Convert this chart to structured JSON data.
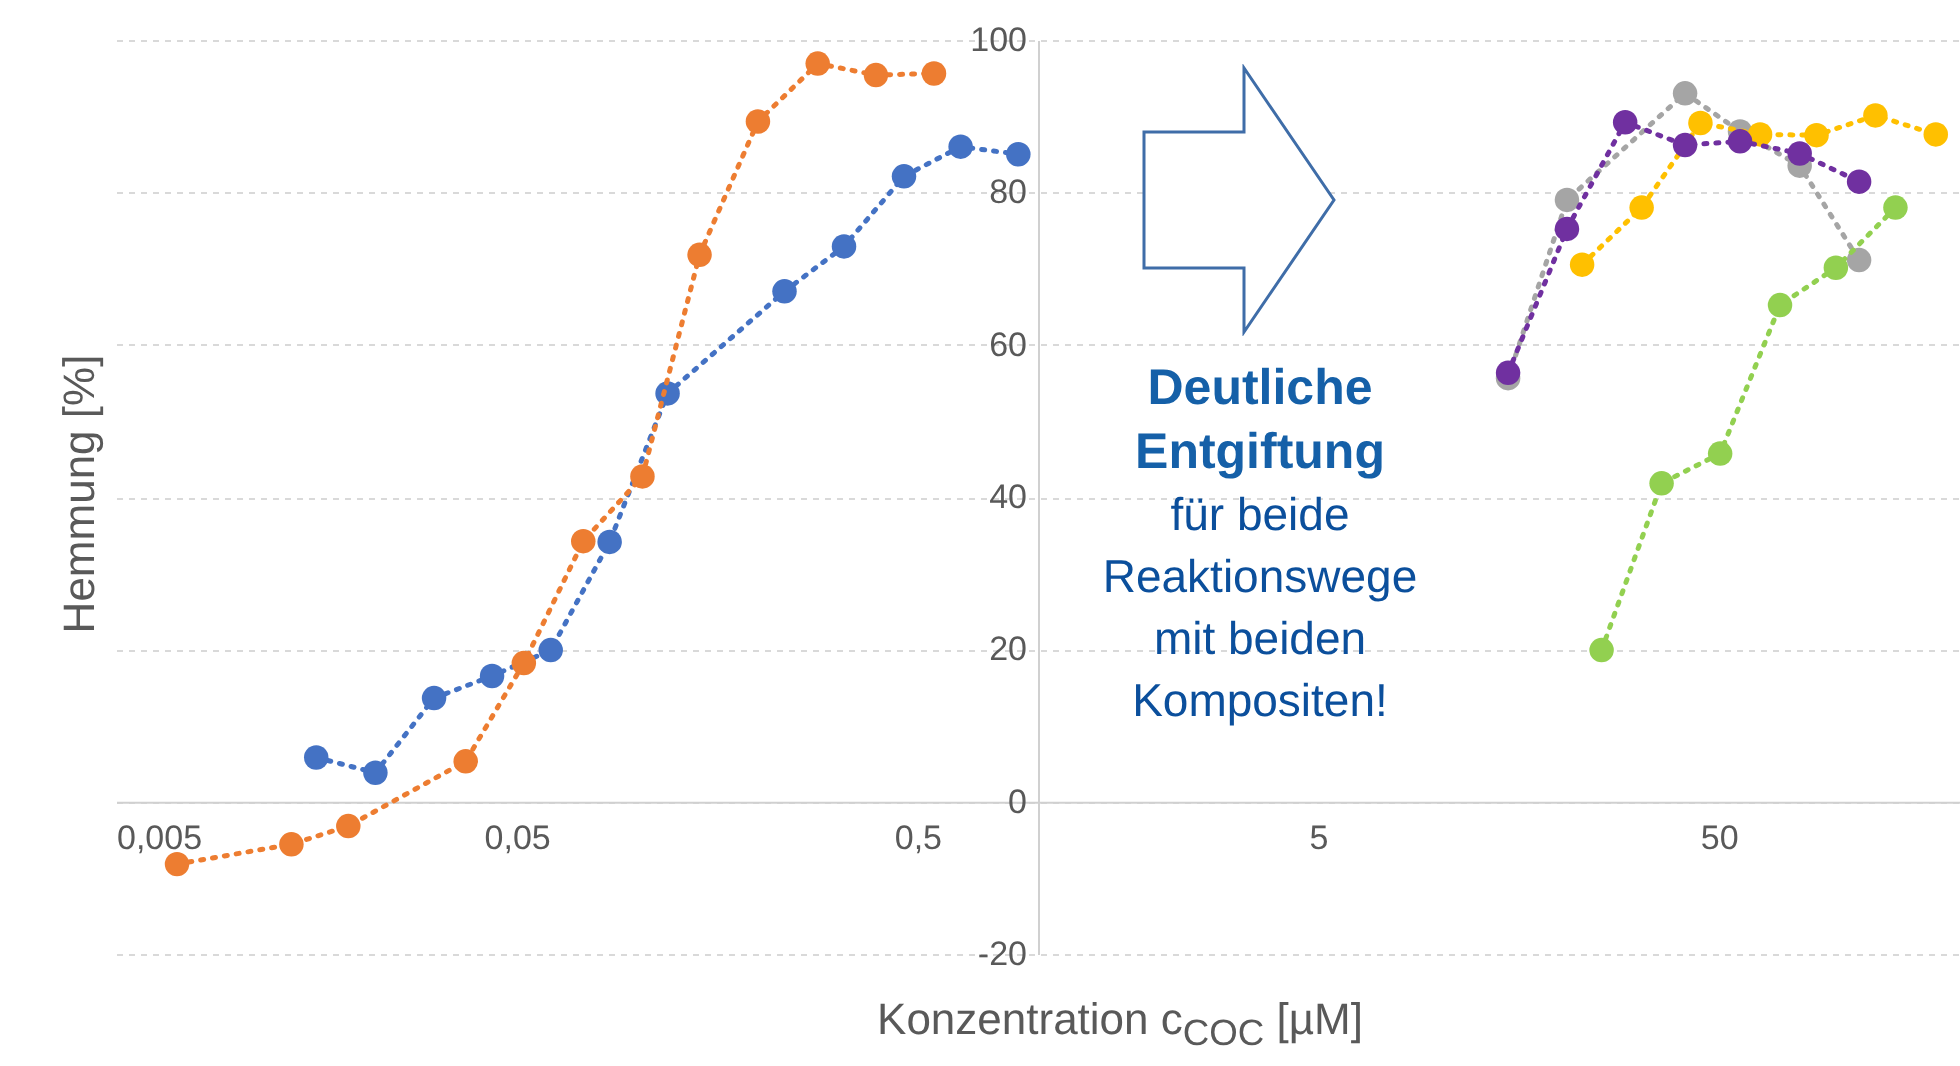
{
  "chart_data": {
    "type": "line",
    "xlabel": "Konzentration c$_{COC}$ [µM]",
    "ylabel": "Hemmung [%]",
    "annotations": [
      "Deutliche Entgiftung",
      "für beide Reaktionswege mit beiden Kompositen!"
    ],
    "log": "x",
    "xlim": [
      0.005,
      200
    ],
    "xticks": [
      {
        "value": 0.005,
        "label": "0,005"
      },
      {
        "value": 0.05,
        "label": "0,05"
      },
      {
        "value": 0.5,
        "label": "0,5"
      },
      5,
      50
    ],
    "ylim": [
      -20,
      100
    ],
    "yticks": [
      -20,
      0,
      20,
      40,
      60,
      80,
      100
    ],
    "grid": "y",
    "marker": "circle",
    "line_style": "dotted",
    "series": [
      {
        "color": "#4472c4",
        "x": [
          0.0158,
          0.0222,
          0.0311,
          0.0434,
          0.0608,
          0.0853,
          0.119,
          0.233,
          0.328,
          0.463,
          0.641,
          0.893
        ],
        "values": [
          5.8,
          3.8,
          13.6,
          16.5,
          19.9,
          34.1,
          53.6,
          67,
          72.9,
          82.1,
          86,
          85
        ]
      },
      {
        "color": "#ed7d31",
        "x": [
          0.0071,
          0.0137,
          0.019,
          0.0373,
          0.0521,
          0.0733,
          0.103,
          0.143,
          0.2,
          0.282,
          0.394,
          0.55
        ],
        "values": [
          -8.2,
          -5.6,
          -3.2,
          5.3,
          18.2,
          34.2,
          42.7,
          71.8,
          89.3,
          96.9,
          95.4,
          95.6
        ]
      },
      {
        "color": "#a5a5a5",
        "x": [
          14.9,
          20.9,
          41.2,
          56.5,
          79.6,
          112
        ],
        "values": [
          55.6,
          79,
          93,
          88,
          83.5,
          71.1
        ]
      },
      {
        "color": "#ffc000",
        "x": [
          22.8,
          32.1,
          45,
          63.4,
          87.7,
          123,
          174
        ],
        "values": [
          70.5,
          78,
          89.1,
          87.6,
          87.5,
          90.1,
          87.6
        ]
      },
      {
        "color": "#92d050",
        "x": [
          25.5,
          36,
          50.4,
          71.1,
          98,
          138
        ],
        "values": [
          19.9,
          41.8,
          45.7,
          65.2,
          70.1,
          78
        ]
      },
      {
        "color": "#7030a0",
        "x": [
          14.9,
          20.9,
          29.2,
          41.2,
          56.5,
          79.6,
          112
        ],
        "values": [
          56.3,
          75.2,
          89.2,
          86.2,
          86.7,
          85.1,
          81.4
        ]
      }
    ]
  }
}
